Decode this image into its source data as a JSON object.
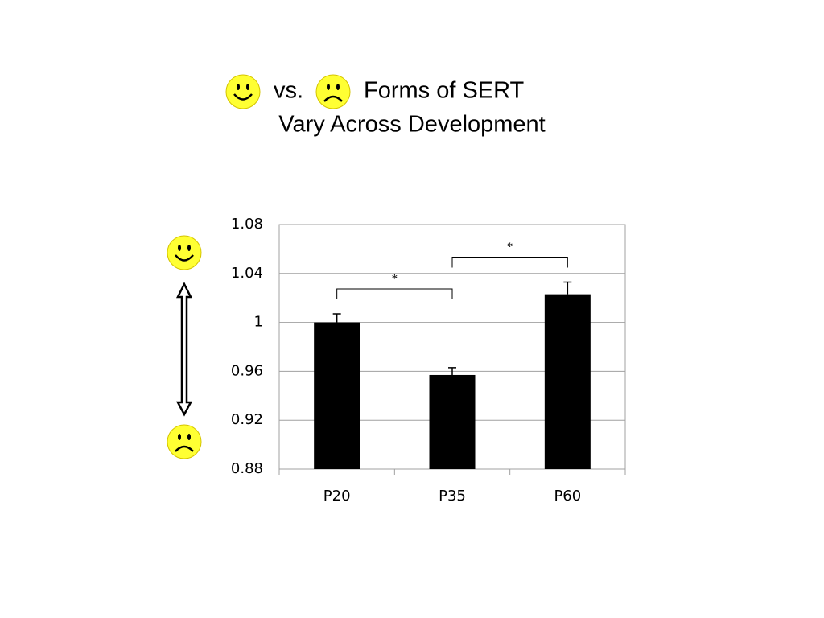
{
  "chart_data": {
    "type": "bar",
    "title": {
      "between": "vs.",
      "after": "Forms of SERT",
      "line2": "Vary Across Development"
    },
    "categories": [
      "P20",
      "P35",
      "P60"
    ],
    "values": [
      1.0,
      0.957,
      1.023
    ],
    "errors": [
      0.007,
      0.006,
      0.01
    ],
    "color": "#000000",
    "ylim": [
      0.88,
      1.08
    ],
    "yticks": [
      0.88,
      0.92,
      0.96,
      1,
      1.04,
      1.08
    ],
    "grid": true,
    "annotations": [
      {
        "text": "*",
        "from": "P20",
        "to": "P35"
      },
      {
        "text": "*",
        "from": "P35",
        "to": "P60"
      }
    ]
  }
}
